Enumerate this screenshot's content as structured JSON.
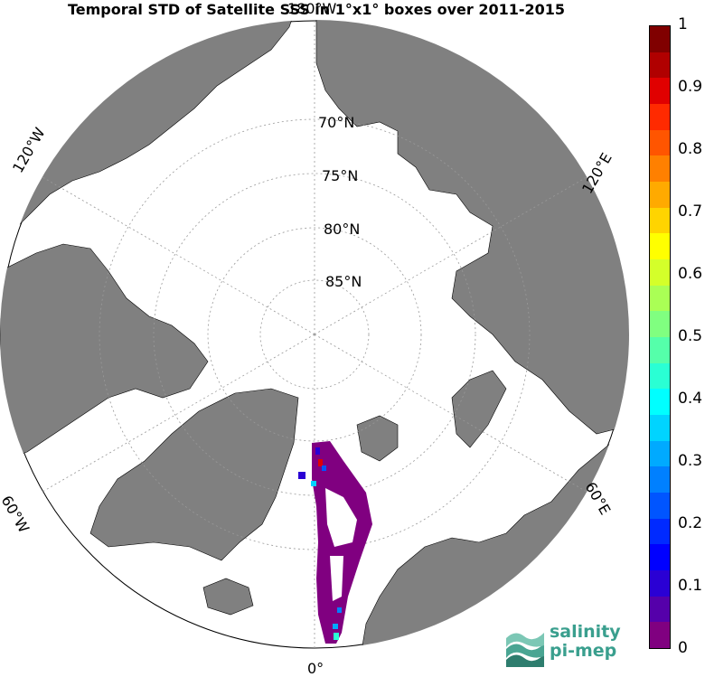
{
  "title": "Temporal STD of Satellite SSS in 1°x1° boxes over 2011-2015",
  "labels": {
    "lon_180": "180°W",
    "lon_120w": "120°W",
    "lon_120e": "120°E",
    "lon_60w": "60°W",
    "lon_60e": "60°E",
    "lon_0": "0°",
    "lat_70": "70°N",
    "lat_75": "75°N",
    "lat_80": "80°N",
    "lat_85": "85°N"
  },
  "colorbar": {
    "ticks": [
      "1",
      "0.9",
      "0.8",
      "0.7",
      "0.6",
      "0.5",
      "0.4",
      "0.3",
      "0.2",
      "0.1",
      "0"
    ],
    "colors": [
      "#800000",
      "#b00000",
      "#e00000",
      "#ff2a00",
      "#ff5500",
      "#ff8000",
      "#ffaa00",
      "#ffd400",
      "#ffff00",
      "#d4ff2a",
      "#aaff55",
      "#80ff80",
      "#55ffaa",
      "#2affd4",
      "#00ffff",
      "#00d4ff",
      "#00aaff",
      "#0080ff",
      "#0055ff",
      "#002aff",
      "#0000ff",
      "#2a00d4",
      "#5500aa",
      "#800080"
    ]
  },
  "colors": {
    "land": "#808080",
    "ocean": "#ffffff",
    "high": "#800000",
    "low": "#800080"
  },
  "logo": {
    "line1": "salinity",
    "line2": "pi-mep"
  }
}
